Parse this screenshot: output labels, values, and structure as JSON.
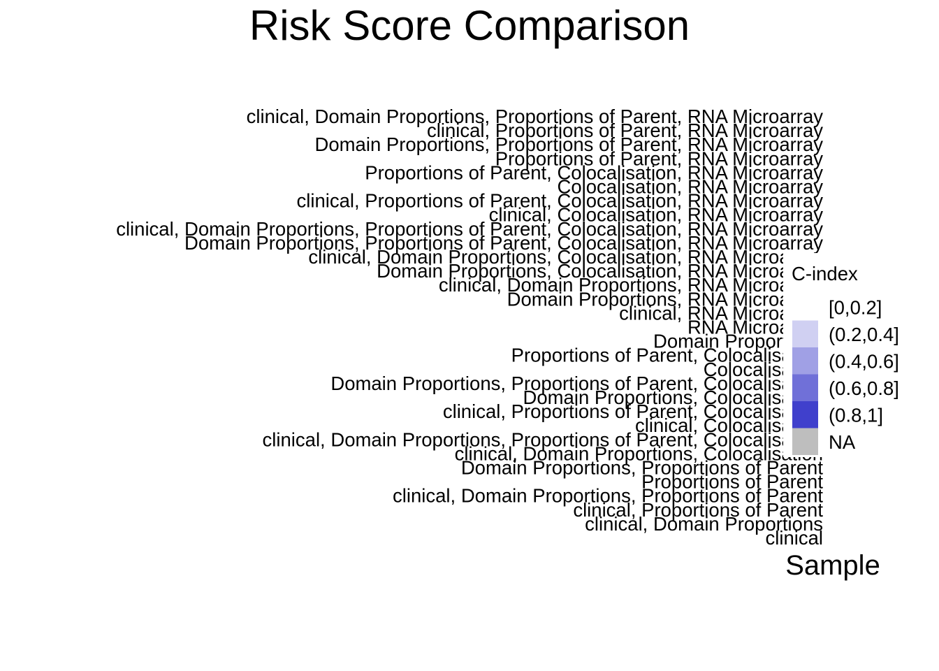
{
  "chart_data": {
    "type": "heatmap",
    "title": "Risk Score Comparison",
    "xlabel": "Sample",
    "ylabel": "",
    "categories_y": [
      "clinical, Domain Proportions, Proportions of Parent, RNA Microarray",
      "clinical, Proportions of Parent, RNA Microarray",
      "Domain Proportions, Proportions of Parent, RNA Microarray",
      "Proportions of Parent, RNA Microarray",
      "Proportions of Parent, Colocalisation, RNA Microarray",
      "Colocalisation, RNA Microarray",
      "clinical, Proportions of Parent, Colocalisation, RNA Microarray",
      "clinical, Colocalisation, RNA Microarray",
      "clinical, Domain Proportions, Proportions of Parent, Colocalisation, RNA Microarray",
      "Domain Proportions, Proportions of Parent, Colocalisation, RNA Microarray",
      "clinical, Domain Proportions, Colocalisation, RNA Microarray",
      "Domain Proportions, Colocalisation, RNA Microarray",
      "clinical, Domain Proportions, RNA Microarray",
      "Domain Proportions, RNA Microarray",
      "clinical, RNA Microarray",
      "RNA Microarray",
      "Domain Proportions",
      "Proportions of Parent, Colocalisation",
      "Colocalisation",
      "Domain Proportions, Proportions of Parent, Colocalisation",
      "Domain Proportions, Colocalisation",
      "clinical, Proportions of Parent, Colocalisation",
      "clinical, Colocalisation",
      "clinical, Domain Proportions, Proportions of Parent, Colocalisation",
      "clinical, Domain Proportions, Colocalisation",
      "Domain Proportions, Proportions of Parent",
      "Proportions of Parent",
      "clinical, Domain Proportions, Proportions of Parent",
      "clinical, Proportions of Parent",
      "clinical, Domain Proportions",
      "clinical"
    ],
    "legend": {
      "title": "C-index",
      "position": "right",
      "items": [
        {
          "label": "[0,0.2]",
          "color": "#ffffff"
        },
        {
          "label": "(0.2,0.4]",
          "color": "#d0d0f2"
        },
        {
          "label": "(0.4,0.6]",
          "color": "#a0a0e5"
        },
        {
          "label": "(0.6,0.8]",
          "color": "#7070d8"
        },
        {
          "label": "(0.8,1]",
          "color": "#4040cc"
        },
        {
          "label": "NA",
          "color": "#bebebe"
        }
      ]
    },
    "grid": false
  }
}
